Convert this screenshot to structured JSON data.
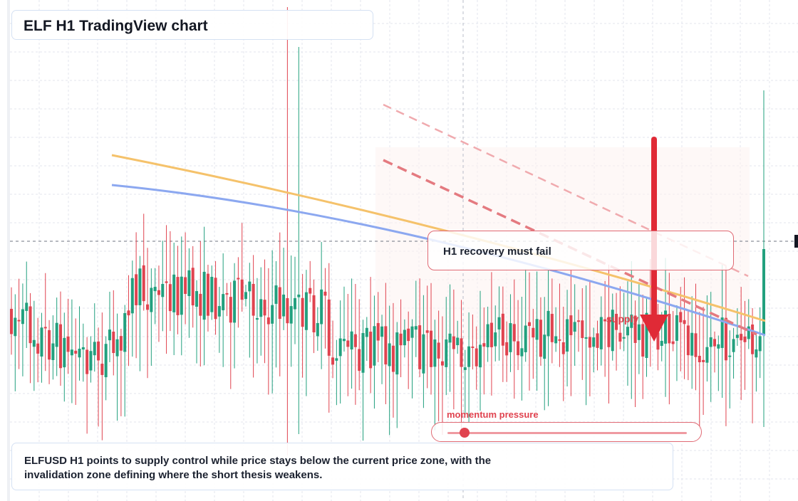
{
  "header": {
    "title": "ELF H1 TradingView chart"
  },
  "callout": {
    "text": "H1 recovery must fail"
  },
  "supply": {
    "label": "supply"
  },
  "momentum": {
    "label": "momentum pressure",
    "level": 0.07
  },
  "note": {
    "text": "ELFUSD H1 points to supply control while price stays below the current price zone, with the invalidation zone defining where the short thesis weakens."
  },
  "colors": {
    "bull": "#22a07e",
    "bear": "#e0434f",
    "ma_fast": "#f5c26b",
    "ma_slow": "#8ca8f0",
    "grid": "#e3e6ee",
    "accent": "#e0434f"
  },
  "chart_data": {
    "type": "candlestick",
    "symbol": "ELFUSD",
    "timeframe": "H1",
    "candle_count": 200,
    "last_close_level": "above moving averages (spike)",
    "overlays": [
      {
        "kind": "moving-average",
        "color": "orange"
      },
      {
        "kind": "moving-average",
        "color": "blue"
      },
      {
        "kind": "dashed-trendline",
        "color": "red"
      },
      {
        "kind": "dashed-trendline",
        "color": "light-red"
      },
      {
        "kind": "horizontal-dashed-line",
        "label": "current price zone"
      },
      {
        "kind": "arrow",
        "direction": "down",
        "color": "red"
      }
    ],
    "grid": true
  }
}
